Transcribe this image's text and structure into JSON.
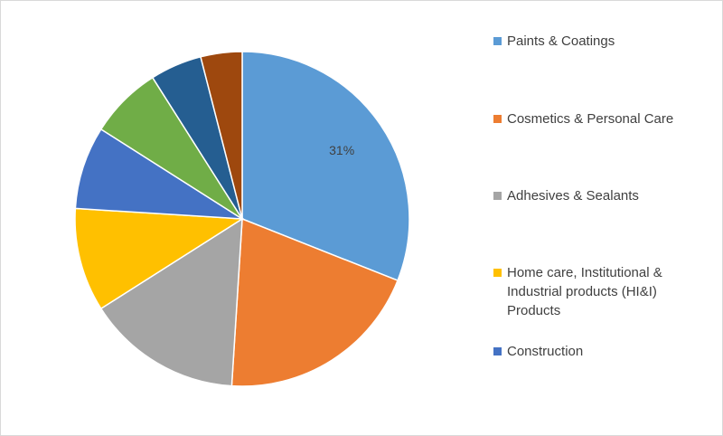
{
  "chart_data": {
    "type": "pie",
    "categories": [
      "Paints & Coatings",
      "Cosmetics & Personal Care",
      "Adhesives & Sealants",
      "Home care, Institutional & Industrial products (HI&I) Products",
      "Construction",
      null,
      null,
      null
    ],
    "values": [
      31,
      20,
      15,
      10,
      8,
      7,
      5,
      4
    ],
    "value_labels": [
      "31%",
      null,
      null,
      null,
      null,
      null,
      null,
      null
    ],
    "colors": [
      "#5b9bd5",
      "#ed7d31",
      "#a5a5a5",
      "#ffc000",
      "#4472c4",
      "#70ad47",
      "#255e91",
      "#9e480e"
    ],
    "legend": "right"
  }
}
